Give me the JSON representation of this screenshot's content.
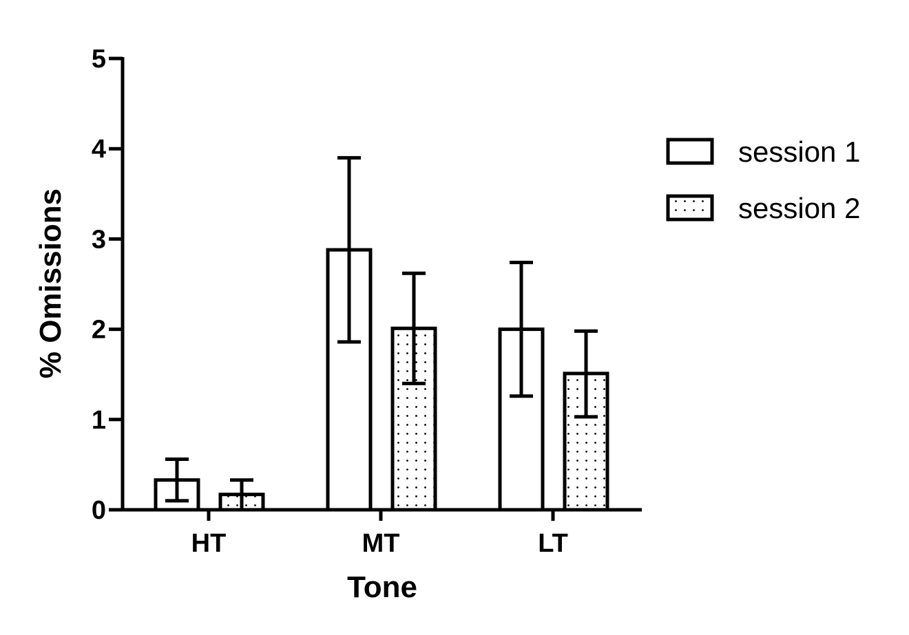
{
  "chart_data": {
    "type": "bar",
    "title": "",
    "xlabel": "Tone",
    "ylabel": "% Omissions",
    "categories": [
      "HT",
      "MT",
      "LT"
    ],
    "ylim": [
      0,
      5
    ],
    "yticks": [
      "0",
      "1",
      "2",
      "3",
      "4",
      "5"
    ],
    "grid": false,
    "legend_position": "right",
    "series": [
      {
        "name": "session 1",
        "pattern": "none",
        "values": [
          0.33,
          2.88,
          2.0
        ],
        "err_low": [
          0.1,
          1.86,
          1.26
        ],
        "err_high": [
          0.56,
          3.9,
          2.74
        ]
      },
      {
        "name": "session 2",
        "pattern": "dots",
        "values": [
          0.17,
          2.01,
          1.51
        ],
        "err_low": [
          0.0,
          1.4,
          1.03
        ],
        "err_high": [
          0.33,
          2.62,
          1.98
        ]
      }
    ]
  }
}
